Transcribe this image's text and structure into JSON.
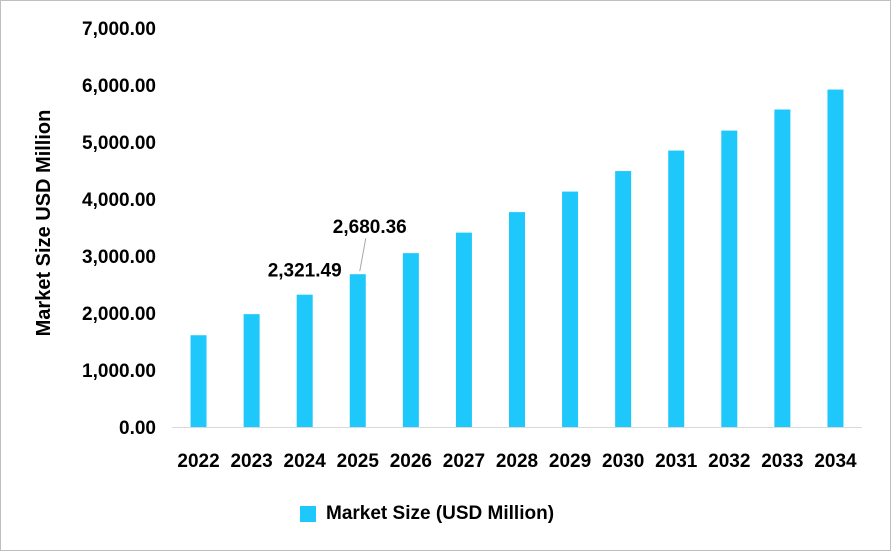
{
  "chart_data": {
    "type": "bar",
    "categories": [
      "2022",
      "2023",
      "2024",
      "2025",
      "2026",
      "2027",
      "2028",
      "2029",
      "2030",
      "2031",
      "2032",
      "2033",
      "2034"
    ],
    "series": [
      {
        "name": "Market Size (USD Million)",
        "values": [
          1610,
          1980,
          2321.49,
          2680.36,
          3050,
          3410,
          3770,
          4130,
          4490,
          4850,
          5200,
          5570,
          5920
        ],
        "color": "#1ec8fb"
      }
    ],
    "data_labels": [
      {
        "category": "2024",
        "text": "2,321.49"
      },
      {
        "category": "2025",
        "text": "2,680.36"
      }
    ],
    "ylabel": "Market Size USD Million",
    "ylim": [
      0,
      7000
    ],
    "yticks": [
      0,
      1000,
      2000,
      3000,
      4000,
      5000,
      6000,
      7000
    ],
    "ytick_labels": [
      "0.00",
      "1,000.00",
      "2,000.00",
      "3,000.00",
      "4,000.00",
      "5,000.00",
      "6,000.00",
      "7,000.00"
    ],
    "grid": false,
    "legend_position": "bottom"
  }
}
